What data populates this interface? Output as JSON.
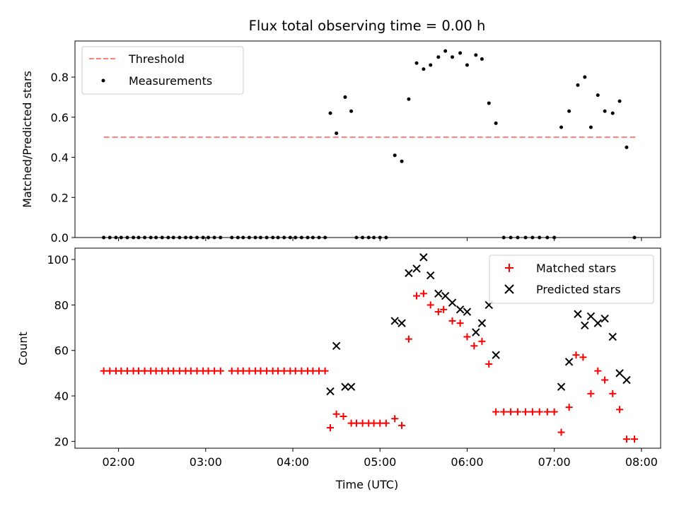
{
  "chart_data": {
    "title": "Flux total observing time = 0.00 h",
    "xlabel": "Time (UTC)",
    "x_tick_labels": [
      "02:00",
      "03:00",
      "04:00",
      "05:00",
      "06:00",
      "07:00",
      "08:00"
    ],
    "x_tick_values": [
      2.0,
      3.0,
      4.0,
      5.0,
      6.0,
      7.0,
      8.0
    ],
    "xlim": [
      1.5,
      8.22
    ],
    "grid": false,
    "colors": {
      "threshold": "#ff7f7f",
      "measurements": "#000000",
      "matched": "#ff0000",
      "predicted": "#000000"
    },
    "panels": [
      {
        "type": "scatter",
        "ylabel": "Matched/Predicted stars",
        "ylim": [
          0,
          0.98
        ],
        "y_tick_values": [
          0.0,
          0.2,
          0.4,
          0.6,
          0.8
        ],
        "y_tick_labels": [
          "0.0",
          "0.2",
          "0.4",
          "0.6",
          "0.8"
        ],
        "legend_position": "top-left",
        "series": [
          {
            "name": "Threshold",
            "kind": "line",
            "style": "dashed",
            "x": [
              1.83,
              7.93
            ],
            "y": [
              0.5,
              0.5
            ]
          },
          {
            "name": "Measurements",
            "kind": "scatter",
            "marker": "dot",
            "x": [
              1.83,
              1.9,
              1.97,
              2.03,
              2.1,
              2.17,
              2.23,
              2.3,
              2.37,
              2.43,
              2.5,
              2.57,
              2.63,
              2.7,
              2.77,
              2.83,
              2.9,
              2.97,
              3.03,
              3.1,
              3.17,
              3.3,
              3.37,
              3.43,
              3.5,
              3.57,
              3.63,
              3.7,
              3.77,
              3.83,
              3.9,
              3.97,
              4.03,
              4.1,
              4.17,
              4.23,
              4.3,
              4.37,
              4.43,
              4.5,
              4.6,
              4.67,
              4.73,
              4.8,
              4.87,
              4.93,
              5.0,
              5.07,
              5.17,
              5.25,
              5.33,
              5.42,
              5.5,
              5.58,
              5.67,
              5.75,
              5.83,
              5.92,
              6.0,
              6.1,
              6.17,
              6.25,
              6.33,
              6.42,
              6.5,
              6.58,
              6.67,
              6.75,
              6.83,
              6.92,
              7.0,
              7.08,
              7.17,
              7.27,
              7.35,
              7.42,
              7.5,
              7.58,
              7.67,
              7.75,
              7.83,
              7.92
            ],
            "y": [
              0,
              0,
              0,
              0,
              0,
              0,
              0,
              0,
              0,
              0,
              0,
              0,
              0,
              0,
              0,
              0,
              0,
              0,
              0,
              0,
              0,
              0,
              0,
              0,
              0,
              0,
              0,
              0,
              0,
              0,
              0,
              0,
              0,
              0,
              0,
              0,
              0,
              0,
              0.62,
              0.52,
              0.7,
              0.63,
              0,
              0,
              0,
              0,
              0,
              0,
              0.41,
              0.38,
              0.69,
              0.87,
              0.84,
              0.86,
              0.9,
              0.93,
              0.9,
              0.92,
              0.86,
              0.91,
              0.89,
              0.67,
              0.57,
              0,
              0,
              0,
              0,
              0,
              0,
              0,
              0,
              0.55,
              0.63,
              0.76,
              0.8,
              0.55,
              0.71,
              0.63,
              0.62,
              0.68,
              0.45,
              0
            ]
          }
        ]
      },
      {
        "type": "scatter",
        "ylabel": "Count",
        "ylim": [
          17,
          105
        ],
        "y_tick_values": [
          20,
          40,
          60,
          80,
          100
        ],
        "y_tick_labels": [
          "20",
          "40",
          "60",
          "80",
          "100"
        ],
        "legend_position": "top-right",
        "series": [
          {
            "name": "Matched stars",
            "kind": "scatter",
            "marker": "plus",
            "x": [
              1.83,
              1.9,
              1.97,
              2.03,
              2.1,
              2.17,
              2.23,
              2.3,
              2.37,
              2.43,
              2.5,
              2.57,
              2.63,
              2.7,
              2.77,
              2.83,
              2.9,
              2.97,
              3.03,
              3.1,
              3.17,
              3.3,
              3.37,
              3.43,
              3.5,
              3.57,
              3.63,
              3.7,
              3.77,
              3.83,
              3.9,
              3.97,
              4.03,
              4.1,
              4.17,
              4.23,
              4.3,
              4.37,
              4.43,
              4.5,
              4.58,
              4.67,
              4.73,
              4.8,
              4.87,
              4.93,
              5.0,
              5.07,
              5.17,
              5.25,
              5.33,
              5.42,
              5.5,
              5.58,
              5.67,
              5.73,
              5.83,
              5.92,
              6.0,
              6.08,
              6.17,
              6.25,
              6.33,
              6.42,
              6.5,
              6.58,
              6.67,
              6.75,
              6.83,
              6.92,
              7.0,
              7.08,
              7.17,
              7.25,
              7.33,
              7.42,
              7.5,
              7.58,
              7.67,
              7.75,
              7.83,
              7.92
            ],
            "y": [
              51,
              51,
              51,
              51,
              51,
              51,
              51,
              51,
              51,
              51,
              51,
              51,
              51,
              51,
              51,
              51,
              51,
              51,
              51,
              51,
              51,
              51,
              51,
              51,
              51,
              51,
              51,
              51,
              51,
              51,
              51,
              51,
              51,
              51,
              51,
              51,
              51,
              51,
              26,
              32,
              31,
              28,
              28,
              28,
              28,
              28,
              28,
              28,
              30,
              27,
              65,
              84,
              85,
              80,
              77,
              78,
              73,
              72,
              66,
              62,
              64,
              54,
              33,
              33,
              33,
              33,
              33,
              33,
              33,
              33,
              33,
              24,
              35,
              58,
              57,
              41,
              51,
              47,
              41,
              34,
              21,
              21
            ]
          },
          {
            "name": "Predicted stars",
            "kind": "scatter",
            "marker": "x",
            "x": [
              4.43,
              4.5,
              4.6,
              4.67,
              5.17,
              5.25,
              5.33,
              5.42,
              5.5,
              5.58,
              5.67,
              5.75,
              5.83,
              5.92,
              6.0,
              6.1,
              6.17,
              6.25,
              6.33,
              7.08,
              7.17,
              7.27,
              7.35,
              7.42,
              7.5,
              7.58,
              7.67,
              7.75,
              7.83
            ],
            "y": [
              42,
              62,
              44,
              44,
              73,
              72,
              94,
              96,
              101,
              93,
              85,
              84,
              81,
              78,
              77,
              68,
              72,
              80,
              58,
              44,
              55,
              76,
              71,
              75,
              72,
              74,
              66,
              50,
              47
            ]
          }
        ]
      }
    ]
  }
}
